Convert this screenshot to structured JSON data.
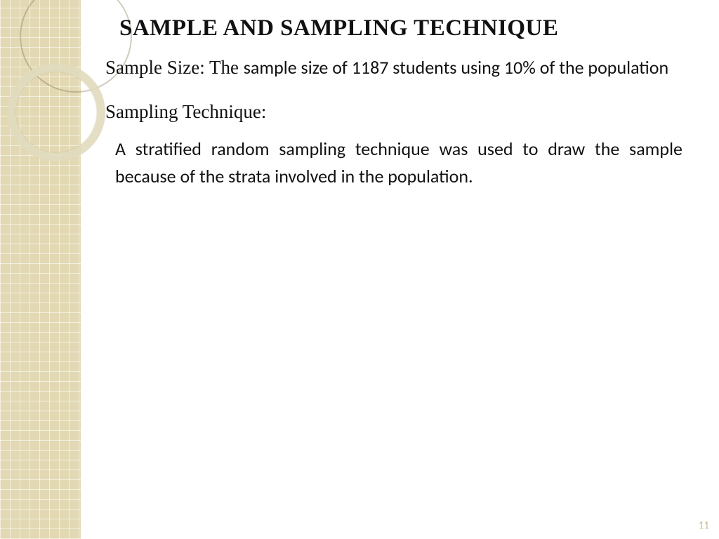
{
  "theme": {
    "sidebar_bg": "#e3d9b0",
    "grid_line": "rgba(255,255,255,0.55)",
    "ring_thin": "rgba(120,110,70,0.35)",
    "ring_thick": "rgba(225,218,190,0.9)",
    "text_color": "#111111",
    "pagenum_color": "#c9bb88",
    "serif_font": "Georgia",
    "sans_font": "Gill Sans"
  },
  "slide": {
    "title": "SAMPLE AND SAMPLING TECHNIQUE",
    "sample_size": {
      "label": "Sample Size: The ",
      "text": "sample size of 1187 students using 10% of the population"
    },
    "technique": {
      "heading": "Sampling Technique:",
      "body": "A stratified random sampling technique was used to draw the sample because of the strata involved in the population."
    },
    "page_number": "11"
  }
}
